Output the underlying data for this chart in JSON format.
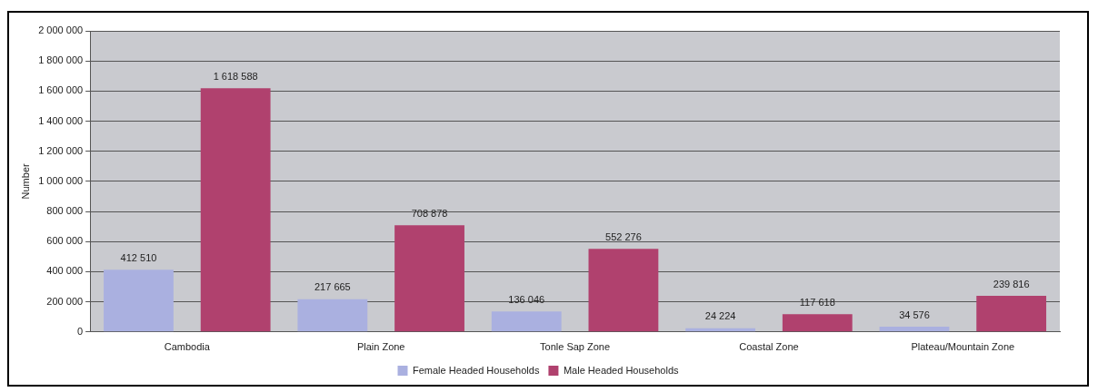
{
  "chart_data": {
    "type": "bar",
    "ylabel": "Number",
    "categories": [
      "Cambodia",
      "Plain Zone",
      "Tonle Sap Zone",
      "Coastal Zone",
      "Plateau/Mountain Zone"
    ],
    "series": [
      {
        "name": "Female Headed Households",
        "color": "#aab0e0",
        "values": [
          412510,
          217665,
          136046,
          24224,
          34576
        ],
        "value_labels": [
          "412 510",
          "217 665",
          "136 046",
          "24 224",
          "34 576"
        ]
      },
      {
        "name": "Male Headed Households",
        "color": "#b0416e",
        "values": [
          1618588,
          708878,
          552276,
          117618,
          239816
        ],
        "value_labels": [
          "1 618 588",
          "708 878",
          "552 276",
          "117 618",
          "239 816"
        ]
      }
    ],
    "ylim": [
      0,
      2000000
    ],
    "yticks": [
      0,
      {
        "value": 200000,
        "label": "200 000"
      },
      {
        "value": 400000,
        "label": "400 000"
      },
      {
        "value": 600000,
        "label": "600 000"
      },
      {
        "value": 800000,
        "label": "800 000"
      },
      {
        "value": 1000000,
        "label": "1 000 000"
      },
      {
        "value": 1200000,
        "label": "1 200 000"
      },
      {
        "value": 1400000,
        "label": "1 400 000"
      },
      {
        "value": 1600000,
        "label": "1 600 000"
      },
      {
        "value": 1800000,
        "label": "1 800 000"
      },
      {
        "value": 2000000,
        "label": "2 000 000"
      }
    ],
    "grid": "y",
    "legend": "bottom"
  }
}
